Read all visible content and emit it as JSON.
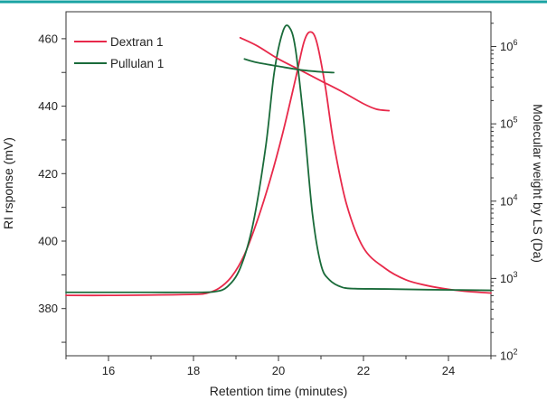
{
  "chart_data": {
    "type": "line",
    "xlabel": "Retention time (minutes)",
    "ylabel": "RI rsponse (mV)",
    "y2label": "Molecular weight by LS (Da)",
    "xlim": [
      15,
      25
    ],
    "ylim": [
      366,
      468
    ],
    "y2lim_log10": [
      2,
      6.45
    ],
    "x_ticks": [
      "16",
      "18",
      "20",
      "22",
      "24"
    ],
    "y_ticks": [
      "380",
      "400",
      "420",
      "440",
      "460"
    ],
    "y2_ticks": [
      {
        "base": "10",
        "exp": "2"
      },
      {
        "base": "10",
        "exp": "3"
      },
      {
        "base": "10",
        "exp": "4"
      },
      {
        "base": "10",
        "exp": "5"
      },
      {
        "base": "10",
        "exp": "6"
      }
    ],
    "colors": {
      "top_rule": "#1aa3a3",
      "dextran": "#e8294a",
      "pullulan": "#1a6b3a",
      "axis": "#333333"
    },
    "legend": {
      "placement": "top-left",
      "entries": [
        "Dextran 1",
        "Pullulan 1"
      ]
    },
    "series": [
      {
        "name": "Dextran 1",
        "axis": "left",
        "x": [
          15.0,
          16.0,
          17.0,
          18.0,
          18.3,
          18.6,
          18.9,
          19.2,
          19.5,
          19.8,
          20.1,
          20.4,
          20.6,
          20.75,
          20.9,
          21.1,
          21.3,
          21.6,
          22.0,
          22.5,
          23.0,
          23.5,
          24.0,
          24.5,
          25.0
        ],
        "values": [
          383.9,
          383.9,
          384.0,
          384.2,
          384.5,
          386.0,
          389.5,
          396.0,
          406.0,
          418.0,
          432.0,
          448.0,
          459.0,
          462.0,
          459.0,
          446.0,
          429.0,
          411.0,
          398.0,
          392.0,
          388.5,
          386.8,
          385.7,
          385.0,
          384.6
        ]
      },
      {
        "name": "Pullulan 1",
        "axis": "left",
        "x": [
          15.0,
          16.0,
          17.0,
          18.0,
          18.5,
          18.8,
          19.1,
          19.4,
          19.7,
          19.9,
          20.1,
          20.25,
          20.4,
          20.6,
          20.8,
          21.0,
          21.2,
          21.5,
          21.8,
          22.5,
          23.5,
          25.0
        ],
        "values": [
          384.8,
          384.8,
          384.8,
          384.8,
          385.0,
          386.5,
          392.0,
          405.0,
          428.0,
          450.0,
          462.0,
          463.5,
          457.0,
          435.0,
          408.0,
          393.0,
          388.5,
          386.3,
          385.9,
          385.8,
          385.6,
          385.4
        ]
      },
      {
        "name": "Dextran 1 MW",
        "axis": "right",
        "x": [
          19.1,
          19.5,
          20.0,
          20.5,
          21.0,
          21.5,
          22.0,
          22.3,
          22.6
        ],
        "mw": [
          1300000,
          1020000,
          690000,
          500000,
          360000,
          260000,
          182000,
          155000,
          148000
        ]
      },
      {
        "name": "Pullulan 1 MW",
        "axis": "right",
        "x": [
          19.2,
          19.5,
          20.0,
          20.5,
          21.0,
          21.3
        ],
        "mw": [
          690000,
          620000,
          555000,
          500000,
          470000,
          460000
        ]
      }
    ]
  }
}
